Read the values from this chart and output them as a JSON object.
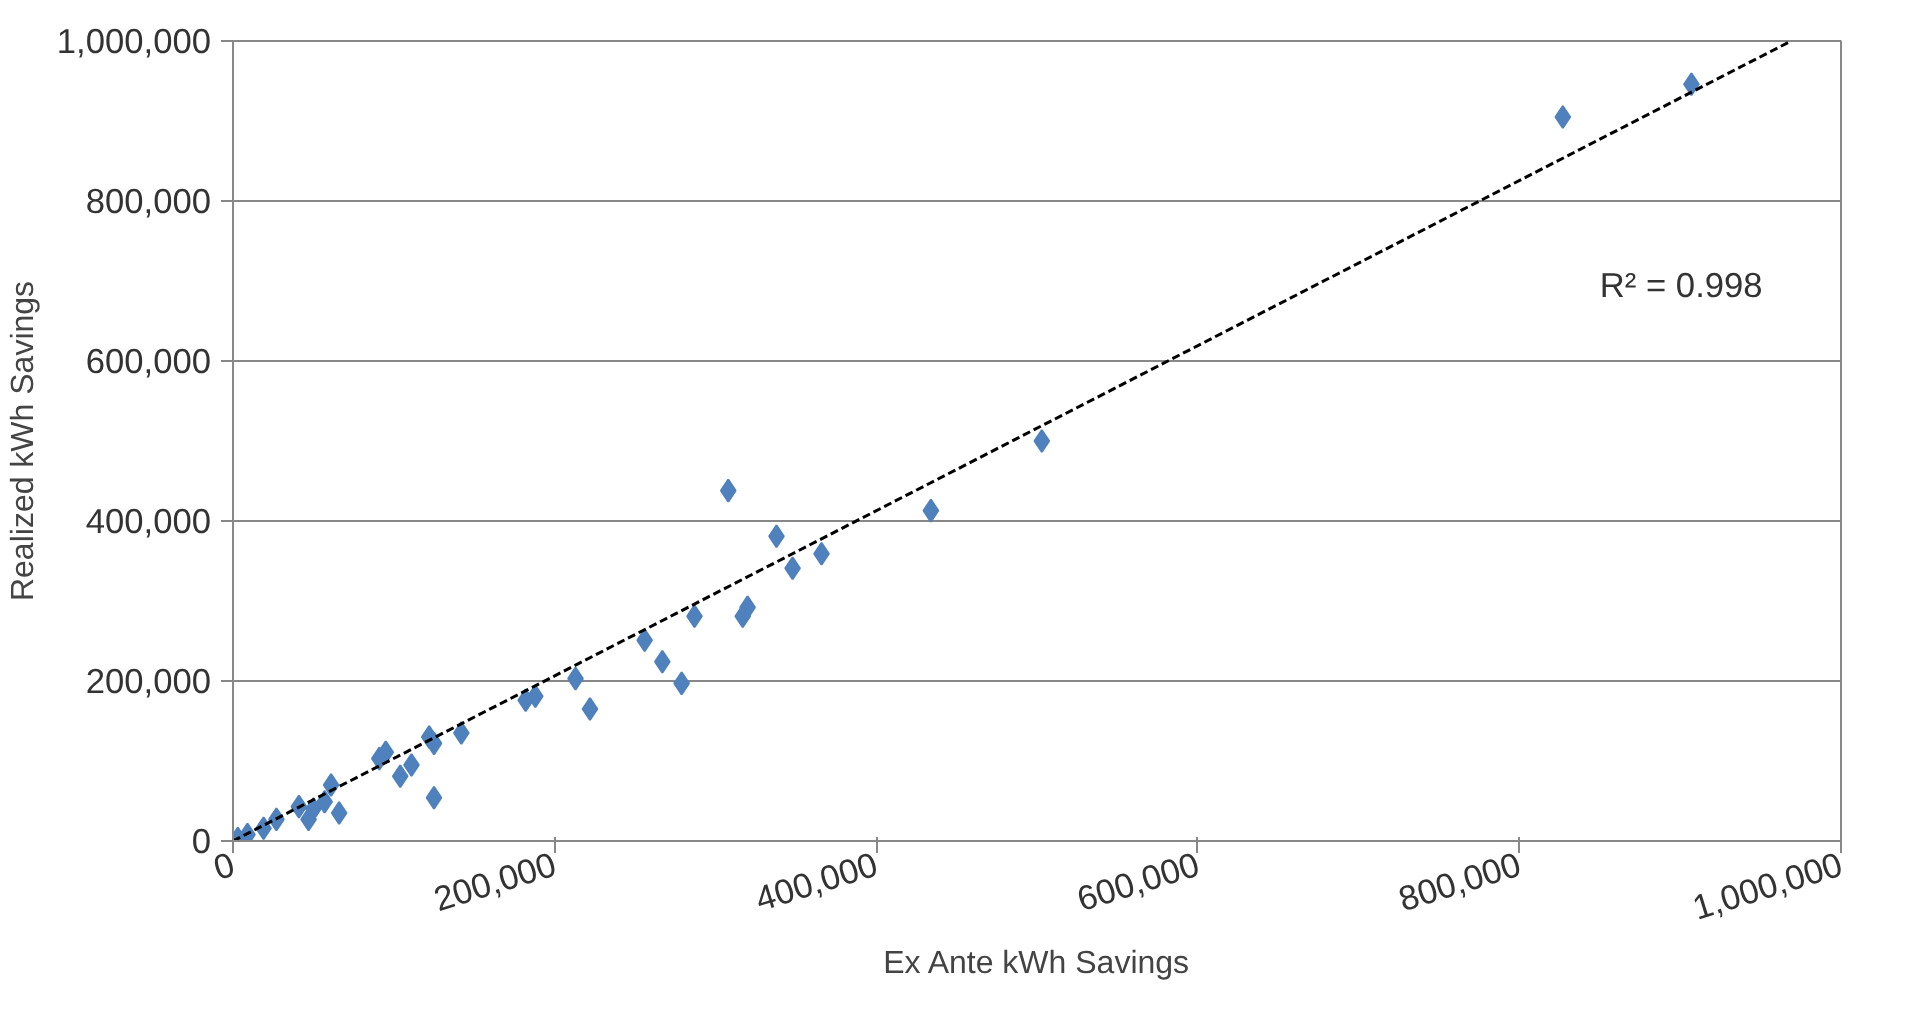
{
  "chart_data": {
    "type": "scatter",
    "xlabel": "Ex Ante kWh Savings",
    "ylabel": "Realized kWh Savings",
    "xlim": [
      0,
      1000000
    ],
    "ylim": [
      0,
      1000000
    ],
    "xticks": [
      {
        "value": 0,
        "label": "0"
      },
      {
        "value": 200000,
        "label": "200,000"
      },
      {
        "value": 400000,
        "label": "400,000"
      },
      {
        "value": 600000,
        "label": "600,000"
      },
      {
        "value": 800000,
        "label": "800,000"
      },
      {
        "value": 1000000,
        "label": "1,000,000"
      }
    ],
    "yticks": [
      {
        "value": 0,
        "label": "0"
      },
      {
        "value": 200000,
        "label": "200,000"
      },
      {
        "value": 400000,
        "label": "400,000"
      },
      {
        "value": 600000,
        "label": "600,000"
      },
      {
        "value": 800000,
        "label": "800,000"
      },
      {
        "value": 1000000,
        "label": "1,000,000"
      }
    ],
    "grid": "y",
    "marker": "diamond",
    "series": [
      {
        "color": "#4f81bd",
        "x": [
          3000,
          9000,
          19000,
          27000,
          41000,
          47000,
          50000,
          57000,
          61000,
          66000,
          91000,
          95000,
          104000,
          111000,
          122000,
          125000,
          125000,
          142000,
          182000,
          188000,
          213000,
          222000,
          256000,
          267000,
          279000,
          287000,
          317000,
          320000,
          308000,
          338000,
          348000,
          366000,
          434000,
          503000,
          827000,
          907000
        ],
        "values": [
          3000,
          8000,
          16000,
          27000,
          43000,
          27000,
          40000,
          49000,
          70000,
          35000,
          103000,
          111000,
          81000,
          95000,
          130000,
          122000,
          54000,
          135000,
          176000,
          181000,
          203000,
          165000,
          251000,
          224000,
          197000,
          281000,
          281000,
          292000,
          438000,
          381000,
          341000,
          359000,
          413000,
          500000,
          905000,
          946000
        ]
      },
      {
        "type": "line",
        "color": "#000000",
        "line_style": "dashed",
        "marker": "none",
        "x": [
          0,
          969000
        ],
        "values": [
          0,
          1000000
        ]
      }
    ],
    "annotations": [
      "R² = 0.998"
    ]
  }
}
